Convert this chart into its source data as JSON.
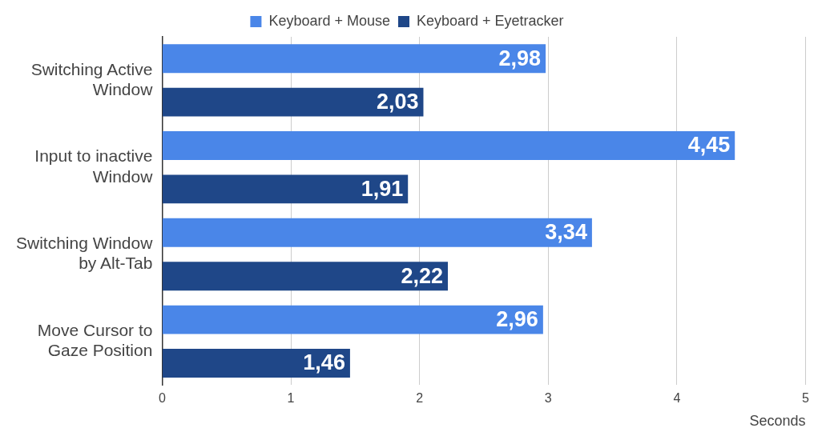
{
  "chart_data": {
    "type": "bar",
    "orientation": "horizontal",
    "xlabel": "Seconds",
    "categories": [
      "Switching Active Window",
      "Input to inactive Window",
      "Switching Window by Alt-Tab",
      "Move Cursor to Gaze Position"
    ],
    "series": [
      {
        "name": "Keyboard + Mouse",
        "color": "#4a86e8",
        "values": [
          2.98,
          4.45,
          3.34,
          2.96
        ],
        "value_labels": [
          "2,98",
          "4,45",
          "3,34",
          "2,96"
        ]
      },
      {
        "name": "Keyboard + Eyetracker",
        "color": "#1f4788",
        "values": [
          2.03,
          1.91,
          2.22,
          1.46
        ],
        "value_labels": [
          "2,03",
          "1,91",
          "2,22",
          "1,46"
        ]
      }
    ],
    "xlim": [
      0,
      5
    ],
    "xticks": [
      0,
      1,
      2,
      3,
      4,
      5
    ],
    "grid": "x",
    "legend": "top"
  }
}
